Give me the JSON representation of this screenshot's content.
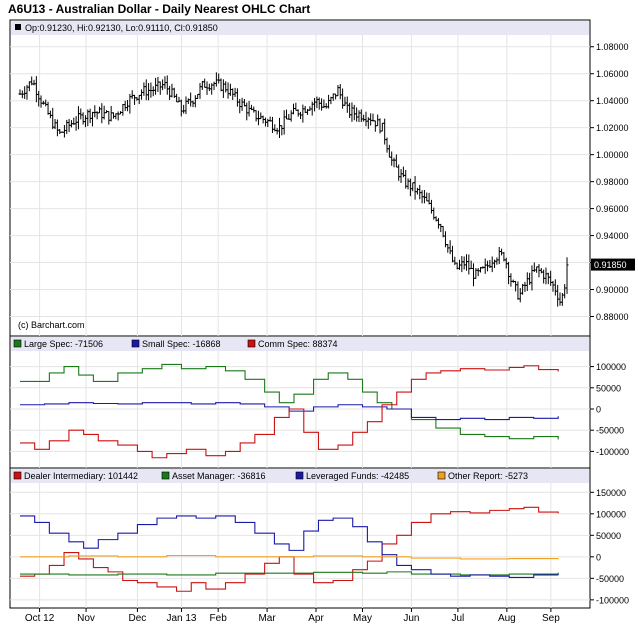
{
  "title": "A6U13 - Australian Dollar - Daily Nearest OHLC Chart",
  "watermark": "(c) Barchart.com",
  "colors": {
    "large_spec": "#1a7a1a",
    "small_spec": "#1a1aaa",
    "comm_spec": "#cc1111",
    "dealer": "#cc1111",
    "asset_manager": "#1a7a1a",
    "leveraged": "#1a1aaa",
    "other": "#f0a020",
    "legend_band": "#e6e6f5",
    "price_tag_bg": "#000000"
  },
  "chart_data": [
    {
      "type": "ohlc",
      "legend": "Op:0.91230, Hi:0.92130, Lo:0.91110, Cl:0.91850",
      "last_price_label": "0.91850",
      "last_price": 0.9185,
      "ylim": [
        0.87,
        1.085
      ],
      "yticks": [
        "1.08000",
        "1.06000",
        "1.04000",
        "1.02000",
        "1.00000",
        "0.98000",
        "0.96000",
        "0.94000",
        "0.92000",
        "0.90000",
        "0.88000"
      ],
      "x_labels": [
        "Oct 12",
        "Nov",
        "Dec",
        "Jan 13",
        "Feb",
        "Mar",
        "Apr",
        "May",
        "Jun",
        "Jul",
        "Aug",
        "Sep"
      ],
      "x_label_positions": [
        0.4,
        1.35,
        2.4,
        3.3,
        4.05,
        5.05,
        6.05,
        7.0,
        8.0,
        8.95,
        9.95,
        10.85
      ],
      "months_span": 11.2,
      "close_path": [
        [
          0.0,
          1.045
        ],
        [
          0.25,
          1.055
        ],
        [
          0.5,
          1.035
        ],
        [
          0.8,
          1.015
        ],
        [
          1.1,
          1.025
        ],
        [
          1.5,
          1.032
        ],
        [
          1.9,
          1.028
        ],
        [
          2.2,
          1.04
        ],
        [
          2.5,
          1.047
        ],
        [
          2.7,
          1.048
        ],
        [
          2.95,
          1.052
        ],
        [
          3.1,
          1.045
        ],
        [
          3.3,
          1.033
        ],
        [
          3.55,
          1.042
        ],
        [
          3.75,
          1.052
        ],
        [
          3.95,
          1.053
        ],
        [
          4.2,
          1.05
        ],
        [
          4.45,
          1.04
        ],
        [
          4.75,
          1.03
        ],
        [
          5.05,
          1.025
        ],
        [
          5.3,
          1.02
        ],
        [
          5.55,
          1.03
        ],
        [
          5.8,
          1.034
        ],
        [
          6.05,
          1.04
        ],
        [
          6.25,
          1.035
        ],
        [
          6.5,
          1.048
        ],
        [
          6.7,
          1.032
        ],
        [
          6.95,
          1.03
        ],
        [
          7.15,
          1.028
        ],
        [
          7.4,
          1.02
        ],
        [
          7.6,
          0.995
        ],
        [
          7.85,
          0.98
        ],
        [
          8.05,
          0.975
        ],
        [
          8.3,
          0.965
        ],
        [
          8.6,
          0.948
        ],
        [
          8.75,
          0.93
        ],
        [
          8.9,
          0.915
        ],
        [
          9.1,
          0.92
        ],
        [
          9.3,
          0.91
        ],
        [
          9.5,
          0.915
        ],
        [
          9.7,
          0.925
        ],
        [
          9.9,
          0.925
        ],
        [
          10.05,
          0.905
        ],
        [
          10.2,
          0.895
        ],
        [
          10.35,
          0.905
        ],
        [
          10.55,
          0.915
        ],
        [
          10.75,
          0.91
        ],
        [
          10.95,
          0.9
        ],
        [
          11.05,
          0.89
        ],
        [
          11.12,
          0.9
        ],
        [
          11.18,
          0.9185
        ]
      ]
    },
    {
      "type": "line",
      "yticks": [
        "100000",
        "50000",
        "0",
        "-50000",
        "-100000"
      ],
      "ylim": [
        -125000,
        125000
      ],
      "series": [
        {
          "name": "Large Spec",
          "legend": "Large Spec: -71506",
          "color_key": "large_spec",
          "points": [
            [
              0,
              65000
            ],
            [
              0.6,
              85000
            ],
            [
              0.9,
              100000
            ],
            [
              1.2,
              80000
            ],
            [
              1.5,
              65000
            ],
            [
              2.0,
              85000
            ],
            [
              2.5,
              95000
            ],
            [
              2.9,
              105000
            ],
            [
              3.3,
              95000
            ],
            [
              3.8,
              100000
            ],
            [
              4.2,
              90000
            ],
            [
              4.6,
              70000
            ],
            [
              5.0,
              40000
            ],
            [
              5.3,
              15000
            ],
            [
              5.6,
              35000
            ],
            [
              6.0,
              70000
            ],
            [
              6.3,
              85000
            ],
            [
              6.7,
              70000
            ],
            [
              7.0,
              40000
            ],
            [
              7.3,
              15000
            ],
            [
              7.6,
              0
            ],
            [
              8.0,
              -25000
            ],
            [
              8.5,
              -45000
            ],
            [
              9.0,
              -60000
            ],
            [
              9.5,
              -65000
            ],
            [
              10.0,
              -70000
            ],
            [
              10.5,
              -65000
            ],
            [
              11.0,
              -72000
            ]
          ]
        },
        {
          "name": "Small Spec",
          "legend": "Small Spec: -16868",
          "color_key": "small_spec",
          "points": [
            [
              0,
              10000
            ],
            [
              0.5,
              12000
            ],
            [
              1.0,
              15000
            ],
            [
              1.5,
              13000
            ],
            [
              2.0,
              12000
            ],
            [
              2.5,
              15000
            ],
            [
              3.0,
              15000
            ],
            [
              3.5,
              12000
            ],
            [
              4.0,
              15000
            ],
            [
              4.5,
              12000
            ],
            [
              5.0,
              5000
            ],
            [
              5.5,
              -5000
            ],
            [
              6.0,
              5000
            ],
            [
              6.5,
              10000
            ],
            [
              7.0,
              5000
            ],
            [
              7.5,
              0
            ],
            [
              8.0,
              -20000
            ],
            [
              8.5,
              -25000
            ],
            [
              9.0,
              -22000
            ],
            [
              9.5,
              -25000
            ],
            [
              10.0,
              -20000
            ],
            [
              10.5,
              -22000
            ],
            [
              11.0,
              -17000
            ]
          ]
        },
        {
          "name": "Comm Spec",
          "legend": "Comm Spec: 88374",
          "color_key": "comm_spec",
          "points": [
            [
              0,
              -80000
            ],
            [
              0.3,
              -95000
            ],
            [
              0.6,
              -75000
            ],
            [
              1.0,
              -50000
            ],
            [
              1.3,
              -60000
            ],
            [
              1.6,
              -75000
            ],
            [
              2.0,
              -85000
            ],
            [
              2.4,
              -100000
            ],
            [
              2.7,
              -115000
            ],
            [
              3.0,
              -105000
            ],
            [
              3.4,
              -95000
            ],
            [
              3.8,
              -110000
            ],
            [
              4.2,
              -100000
            ],
            [
              4.5,
              -80000
            ],
            [
              4.8,
              -60000
            ],
            [
              5.2,
              -20000
            ],
            [
              5.5,
              0
            ],
            [
              5.8,
              -55000
            ],
            [
              6.1,
              -95000
            ],
            [
              6.5,
              -85000
            ],
            [
              6.8,
              -55000
            ],
            [
              7.1,
              -30000
            ],
            [
              7.4,
              10000
            ],
            [
              7.7,
              40000
            ],
            [
              8.0,
              70000
            ],
            [
              8.3,
              85000
            ],
            [
              8.6,
              90000
            ],
            [
              9.0,
              95000
            ],
            [
              9.5,
              92000
            ],
            [
              10.0,
              98000
            ],
            [
              10.3,
              102000
            ],
            [
              10.6,
              93000
            ],
            [
              11.0,
              88374
            ]
          ]
        }
      ]
    },
    {
      "type": "line",
      "yticks": [
        "150000",
        "100000",
        "50000",
        "0",
        "-50000",
        "-100000"
      ],
      "ylim": [
        -105000,
        160000
      ],
      "series": [
        {
          "name": "Dealer Intermediary",
          "legend": "Dealer Intermediary: 101442",
          "color_key": "dealer",
          "points": [
            [
              0,
              -45000
            ],
            [
              0.3,
              -40000
            ],
            [
              0.6,
              -20000
            ],
            [
              0.9,
              10000
            ],
            [
              1.2,
              -5000
            ],
            [
              1.5,
              -25000
            ],
            [
              1.8,
              -35000
            ],
            [
              2.1,
              -55000
            ],
            [
              2.4,
              -60000
            ],
            [
              2.8,
              -70000
            ],
            [
              3.2,
              -80000
            ],
            [
              3.5,
              -60000
            ],
            [
              3.8,
              -75000
            ],
            [
              4.2,
              -60000
            ],
            [
              4.6,
              -40000
            ],
            [
              5.0,
              -15000
            ],
            [
              5.3,
              0
            ],
            [
              5.6,
              -40000
            ],
            [
              6.0,
              -60000
            ],
            [
              6.4,
              -55000
            ],
            [
              6.8,
              -30000
            ],
            [
              7.1,
              -10000
            ],
            [
              7.4,
              30000
            ],
            [
              7.7,
              50000
            ],
            [
              8.0,
              80000
            ],
            [
              8.4,
              100000
            ],
            [
              8.8,
              105000
            ],
            [
              9.2,
              102000
            ],
            [
              9.6,
              108000
            ],
            [
              10.0,
              112000
            ],
            [
              10.3,
              115000
            ],
            [
              10.6,
              104000
            ],
            [
              11.0,
              101442
            ]
          ]
        },
        {
          "name": "Asset Manager",
          "legend": "Asset Manager: -36816",
          "color_key": "asset_manager",
          "points": [
            [
              0,
              -40000
            ],
            [
              1.0,
              -42000
            ],
            [
              2.0,
              -40000
            ],
            [
              3.0,
              -42000
            ],
            [
              4.0,
              -38000
            ],
            [
              5.0,
              -38000
            ],
            [
              6.0,
              -36000
            ],
            [
              7.0,
              -38000
            ],
            [
              7.5,
              -35000
            ],
            [
              8.0,
              -40000
            ],
            [
              9.0,
              -42000
            ],
            [
              10.0,
              -40000
            ],
            [
              11.0,
              -36816
            ]
          ]
        },
        {
          "name": "Leveraged Funds",
          "legend": "Leveraged Funds: -42485",
          "color_key": "leveraged",
          "points": [
            [
              0,
              95000
            ],
            [
              0.3,
              80000
            ],
            [
              0.6,
              55000
            ],
            [
              1.0,
              35000
            ],
            [
              1.3,
              20000
            ],
            [
              1.6,
              40000
            ],
            [
              2.0,
              55000
            ],
            [
              2.4,
              75000
            ],
            [
              2.8,
              90000
            ],
            [
              3.2,
              95000
            ],
            [
              3.6,
              90000
            ],
            [
              4.0,
              95000
            ],
            [
              4.4,
              80000
            ],
            [
              4.8,
              55000
            ],
            [
              5.2,
              30000
            ],
            [
              5.5,
              15000
            ],
            [
              5.8,
              60000
            ],
            [
              6.1,
              85000
            ],
            [
              6.4,
              90000
            ],
            [
              6.8,
              70000
            ],
            [
              7.1,
              35000
            ],
            [
              7.4,
              5000
            ],
            [
              7.7,
              -20000
            ],
            [
              8.0,
              -30000
            ],
            [
              8.4,
              -40000
            ],
            [
              8.8,
              -45000
            ],
            [
              9.2,
              -42000
            ],
            [
              9.6,
              -45000
            ],
            [
              10.0,
              -48000
            ],
            [
              10.5,
              -42000
            ],
            [
              11.0,
              -42485
            ]
          ]
        },
        {
          "name": "Other Report",
          "legend": "Other Report: -5273",
          "color_key": "other",
          "points": [
            [
              0,
              0
            ],
            [
              1.0,
              2000
            ],
            [
              2.0,
              0
            ],
            [
              3.0,
              3000
            ],
            [
              4.0,
              0
            ],
            [
              5.0,
              0
            ],
            [
              6.0,
              2000
            ],
            [
              7.0,
              0
            ],
            [
              8.0,
              -3000
            ],
            [
              9.0,
              -5000
            ],
            [
              10.0,
              -4000
            ],
            [
              11.0,
              -5273
            ]
          ]
        }
      ]
    }
  ]
}
